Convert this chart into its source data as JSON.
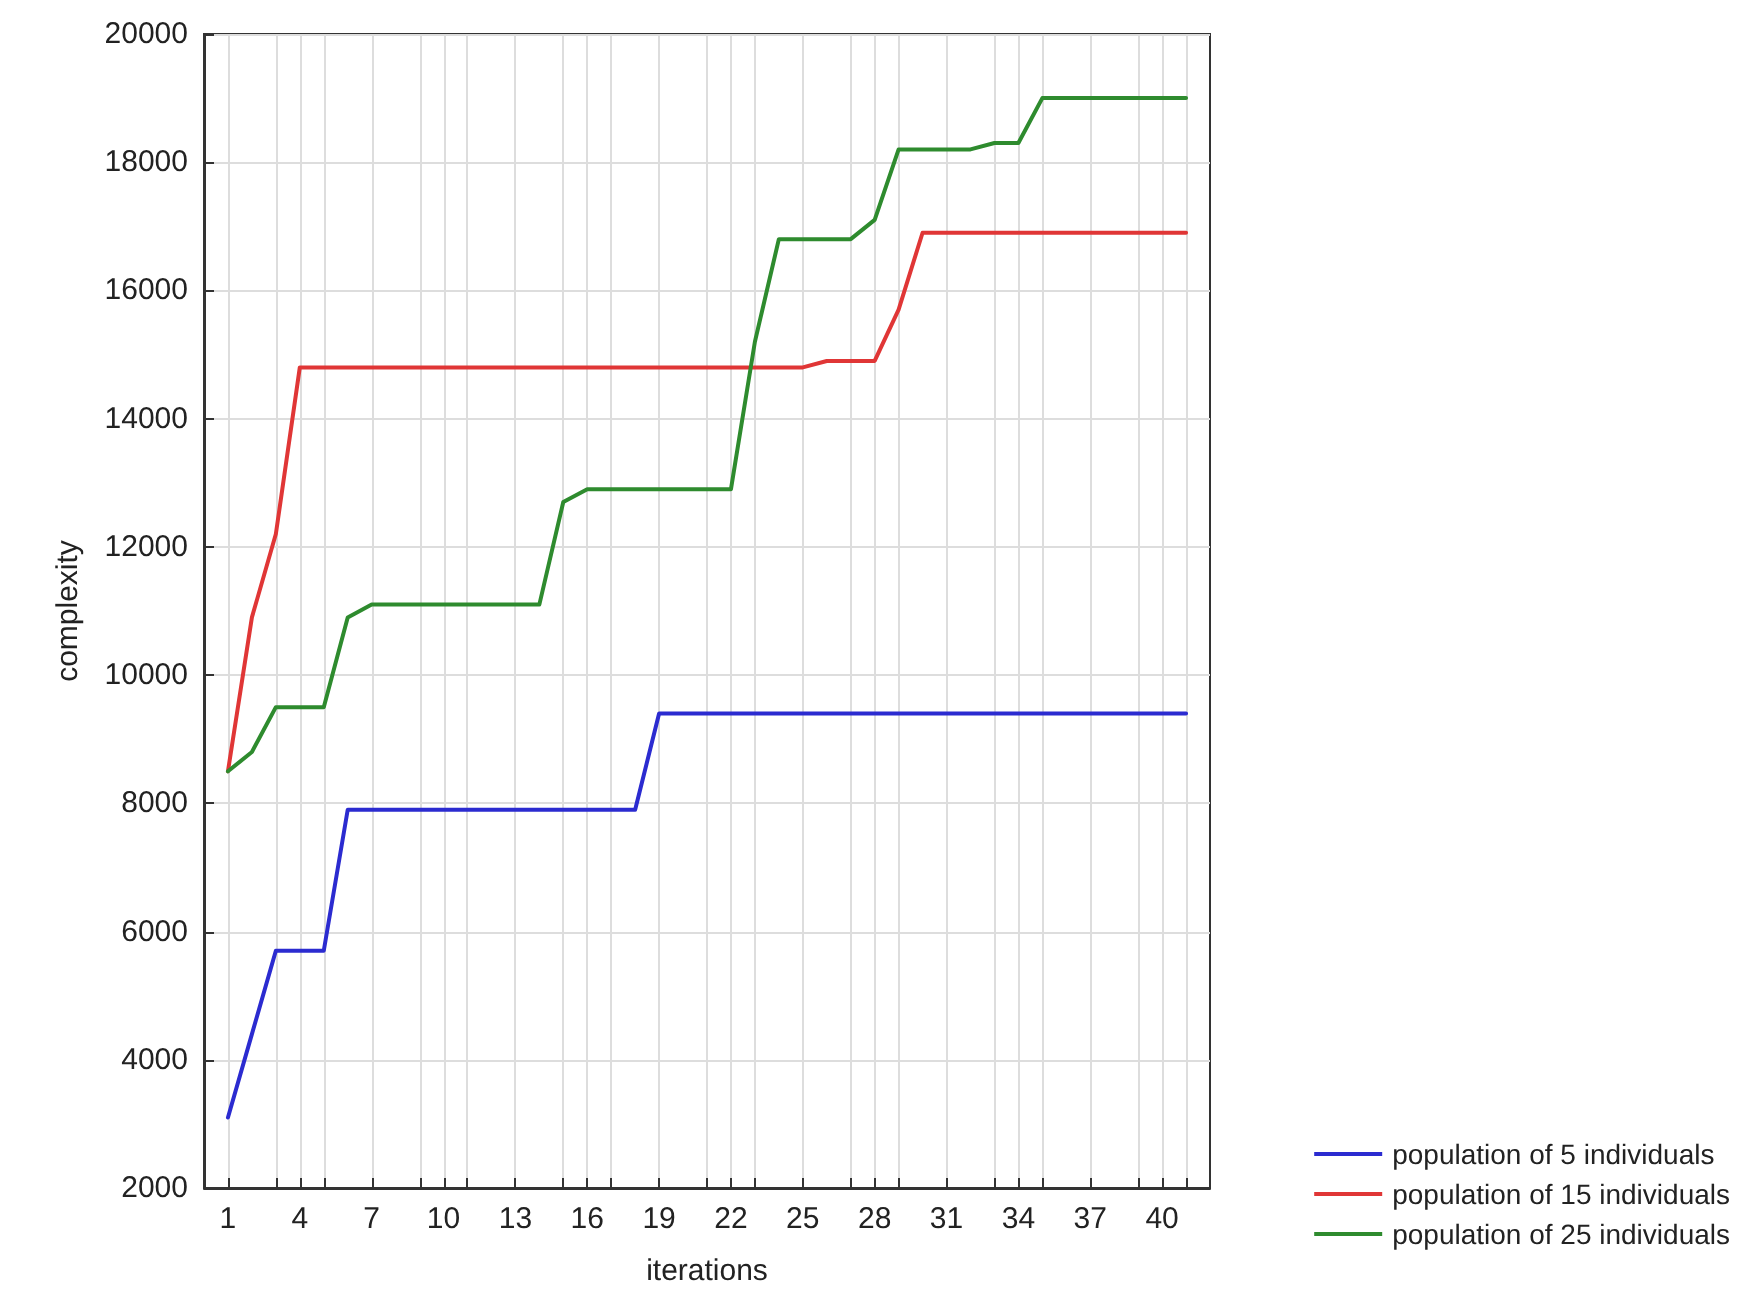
{
  "chart_data": {
    "type": "line",
    "xlabel": "iterations",
    "ylabel": "complexity",
    "x": [
      1,
      2,
      3,
      4,
      5,
      6,
      7,
      8,
      9,
      10,
      11,
      12,
      13,
      14,
      15,
      16,
      17,
      18,
      19,
      20,
      21,
      22,
      23,
      24,
      25,
      26,
      27,
      28,
      29,
      30,
      31,
      32,
      33,
      34,
      35,
      36,
      37,
      38,
      39,
      40,
      41
    ],
    "series": [
      {
        "name": "population of 5 individuals",
        "color": "#2b2bd0",
        "values": [
          3100,
          4400,
          5700,
          5700,
          5700,
          7900,
          7900,
          7900,
          7900,
          7900,
          7900,
          7900,
          7900,
          7900,
          7900,
          7900,
          7900,
          7900,
          9400,
          9400,
          9400,
          9400,
          9400,
          9400,
          9400,
          9400,
          9400,
          9400,
          9400,
          9400,
          9400,
          9400,
          9400,
          9400,
          9400,
          9400,
          9400,
          9400,
          9400,
          9400,
          9400
        ]
      },
      {
        "name": "population of 15 individuals",
        "color": "#e03636",
        "values": [
          8500,
          10900,
          12200,
          14800,
          14800,
          14800,
          14800,
          14800,
          14800,
          14800,
          14800,
          14800,
          14800,
          14800,
          14800,
          14800,
          14800,
          14800,
          14800,
          14800,
          14800,
          14800,
          14800,
          14800,
          14800,
          14900,
          14900,
          14900,
          15700,
          16900,
          16900,
          16900,
          16900,
          16900,
          16900,
          16900,
          16900,
          16900,
          16900,
          16900,
          16900
        ]
      },
      {
        "name": "population of 25 individuals",
        "color": "#2e8b2e",
        "values": [
          8500,
          8800,
          9500,
          9500,
          9500,
          10900,
          11100,
          11100,
          11100,
          11100,
          11100,
          11100,
          11100,
          11100,
          12700,
          12900,
          12900,
          12900,
          12900,
          12900,
          12900,
          12900,
          15200,
          16800,
          16800,
          16800,
          16800,
          17100,
          18200,
          18200,
          18200,
          18200,
          18300,
          18300,
          19000,
          19000,
          19000,
          19000,
          19000,
          19000,
          19000
        ]
      }
    ],
    "xlim": [
      0,
      42
    ],
    "xticks": [
      1,
      {
        "value": 3,
        "label": null
      },
      4,
      {
        "value": 5,
        "label": null
      },
      7,
      {
        "value": 9,
        "label": null
      },
      10,
      {
        "value": 11,
        "label": null
      },
      13,
      {
        "value": 15,
        "label": null
      },
      16,
      {
        "value": 17,
        "label": null
      },
      19,
      {
        "value": 21,
        "label": null
      },
      22,
      {
        "value": 23,
        "label": null
      },
      25,
      {
        "value": 27,
        "label": null
      },
      28,
      {
        "value": 29,
        "label": null
      },
      31,
      {
        "value": 33,
        "label": null
      },
      34,
      {
        "value": 35,
        "label": null
      },
      37,
      {
        "value": 39,
        "label": null
      },
      40,
      {
        "value": 41,
        "label": null
      }
    ],
    "ylim": [
      2000,
      20000
    ],
    "yticks": [
      2000,
      4000,
      6000,
      8000,
      10000,
      12000,
      14000,
      16000,
      18000,
      20000
    ],
    "grid": true,
    "legend": "bottom right",
    "marker": "none",
    "line_style": "solid"
  }
}
